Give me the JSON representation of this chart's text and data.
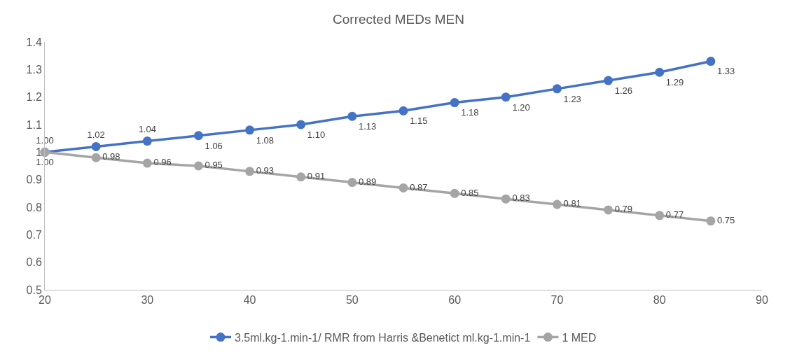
{
  "chart_data": {
    "type": "line",
    "title": "Corrected MEDs MEN",
    "x": [
      20,
      25,
      30,
      35,
      40,
      45,
      50,
      55,
      60,
      65,
      70,
      75,
      80,
      85
    ],
    "series": [
      {
        "name": "3.5ml.kg-1.min-1/ RMR from Harris &Benetict ml.kg-1.min-1",
        "color": "#4472c4",
        "values": [
          1.0,
          1.02,
          1.04,
          1.06,
          1.08,
          1.1,
          1.13,
          1.15,
          1.18,
          1.2,
          1.23,
          1.26,
          1.29,
          1.33
        ],
        "value_labels": [
          "1.00",
          "1.02",
          "1.04",
          "1.06",
          "1.08",
          "1.10",
          "1.13",
          "1.15",
          "1.18",
          "1.20",
          "1.23",
          "1.26",
          "1.29",
          "1.33"
        ]
      },
      {
        "name": "1 MED",
        "color": "#a5a5a5",
        "values": [
          1.0,
          0.98,
          0.96,
          0.95,
          0.93,
          0.91,
          0.89,
          0.87,
          0.85,
          0.83,
          0.81,
          0.79,
          0.77,
          0.75
        ],
        "value_labels": [
          "1.00",
          "0.98",
          "0.96",
          "0.95",
          "0.93",
          "0.91",
          "0.89",
          "0.87",
          "0.85",
          "0.83",
          "0.81",
          "0.79",
          "0.77",
          "0.75"
        ]
      }
    ],
    "xlim": [
      20,
      90
    ],
    "xticks": [
      20,
      30,
      40,
      50,
      60,
      70,
      80,
      90
    ],
    "ylim": [
      0.5,
      1.4
    ],
    "yticks": [
      0.5,
      0.6,
      0.7,
      0.8,
      0.9,
      1,
      1.1,
      1.2,
      1.3,
      1.4
    ],
    "grid": false,
    "legend": "bottom",
    "marker": "circle",
    "line_style": "solid"
  }
}
